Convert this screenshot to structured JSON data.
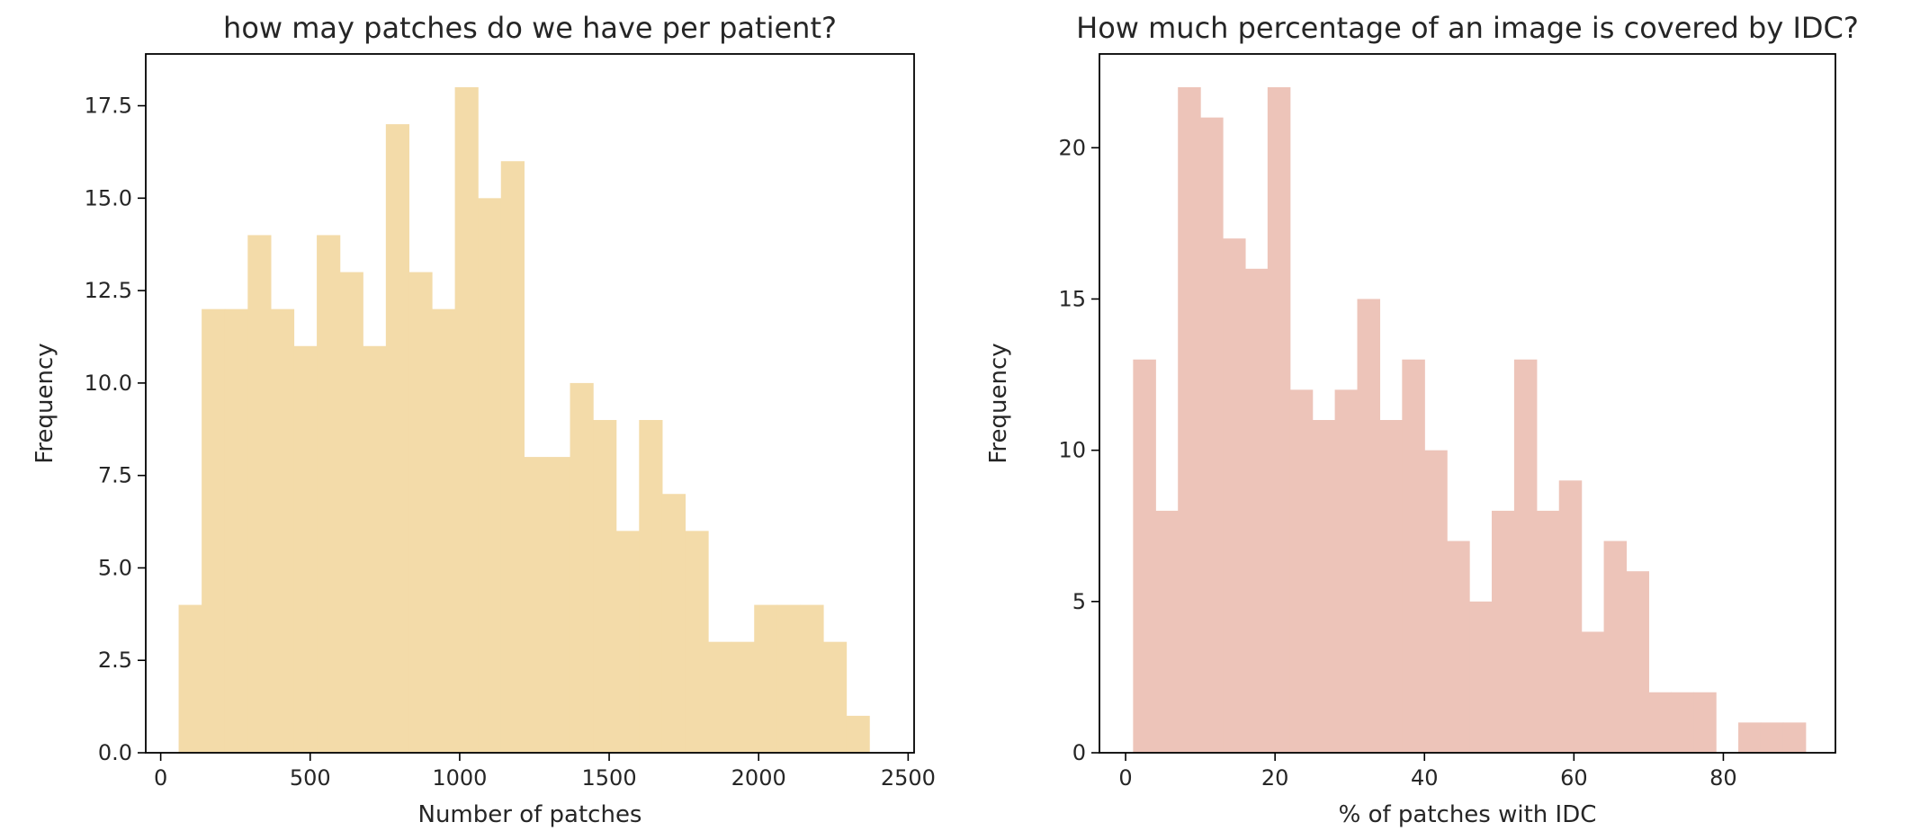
{
  "chart_data": [
    {
      "type": "bar",
      "histogram": true,
      "title": "how may patches do we have per patient?",
      "xlabel": "Number of patches",
      "ylabel": "Frequency",
      "xlim": [
        -50,
        2520
      ],
      "ylim": [
        0,
        18.9
      ],
      "xticks": [
        0,
        500,
        1000,
        1500,
        2000,
        2500
      ],
      "xtick_labels": [
        "0",
        "500",
        "1000",
        "1500",
        "2000",
        "2500"
      ],
      "yticks": [
        0,
        2.5,
        5,
        7.5,
        10,
        12.5,
        15,
        17.5
      ],
      "ytick_labels": [
        "0.0",
        "2.5",
        "5.0",
        "7.5",
        "10.0",
        "12.5",
        "15.0",
        "17.5"
      ],
      "bin_edges": [
        60,
        137,
        214,
        291,
        368,
        445,
        522,
        599,
        676,
        753,
        830,
        907,
        984,
        1061,
        1138,
        1215,
        1292,
        1369,
        1446,
        1523,
        1600,
        1677,
        1754,
        1831,
        1908,
        1985,
        2062,
        2139,
        2216,
        2293,
        2370
      ],
      "values": [
        4,
        12,
        12,
        14,
        12,
        11,
        14,
        13,
        11,
        17,
        13,
        12,
        18,
        15,
        16,
        8,
        8,
        10,
        9,
        6,
        9,
        7,
        6,
        3,
        3,
        4,
        4,
        4,
        3,
        1
      ],
      "color": "#f3dba9",
      "grid": false
    },
    {
      "type": "bar",
      "histogram": true,
      "title": "How much percentage of an image is covered by IDC?",
      "xlabel": "% of patches with IDC",
      "ylabel": "Frequency",
      "xlim": [
        -3.5,
        95
      ],
      "ylim": [
        0,
        23.1
      ],
      "xticks": [
        0,
        20,
        40,
        60,
        80
      ],
      "xtick_labels": [
        "0",
        "20",
        "40",
        "60",
        "80"
      ],
      "yticks": [
        0,
        5,
        10,
        15,
        20
      ],
      "ytick_labels": [
        "0",
        "5",
        "10",
        "15",
        "20"
      ],
      "bin_edges": [
        1,
        4,
        7,
        10,
        13,
        16,
        19,
        22,
        25,
        28,
        31,
        34,
        37,
        40,
        43,
        46,
        49,
        52,
        55,
        58,
        61,
        64,
        67,
        70,
        73,
        76,
        79,
        82,
        85,
        88,
        91
      ],
      "values": [
        13,
        8,
        22,
        21,
        17,
        16,
        22,
        12,
        11,
        12,
        15,
        11,
        13,
        10,
        7,
        5,
        8,
        13,
        8,
        9,
        4,
        7,
        6,
        2,
        2,
        2,
        0,
        1,
        1,
        1
      ],
      "color": "#edc4b9",
      "grid": false
    }
  ]
}
